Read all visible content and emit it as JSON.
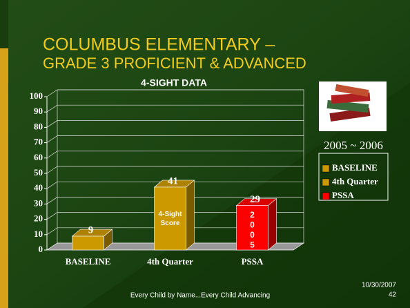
{
  "header": {
    "title_lines": [
      "COLUMBUS ELEMENTARY –",
      "GRADE 3 PROFICIENT & ADVANCED"
    ]
  },
  "chart_data": {
    "type": "bar3d",
    "title": "4-SIGHT DATA",
    "categories": [
      "BASELINE",
      "4th Quarter",
      "PSSA"
    ],
    "values": [
      9,
      41,
      29
    ],
    "colors": [
      "#cc9900",
      "#cc9900",
      "#ff0000"
    ],
    "ylim": [
      0,
      100
    ],
    "yticks": [
      0,
      10,
      20,
      30,
      40,
      50,
      60,
      70,
      80,
      90,
      100
    ],
    "grid": true,
    "legend_title": "2005 ~ 2006",
    "annotations": [
      {
        "category": 1,
        "lines": [
          "4-Sight",
          "Score"
        ]
      },
      {
        "category": 2,
        "lines": [
          "2",
          "0",
          "0",
          "5"
        ]
      }
    ]
  },
  "footer": {
    "tagline": "Every Child by Name...Every Child Advancing",
    "date": "10/30/2007",
    "page": "42"
  }
}
